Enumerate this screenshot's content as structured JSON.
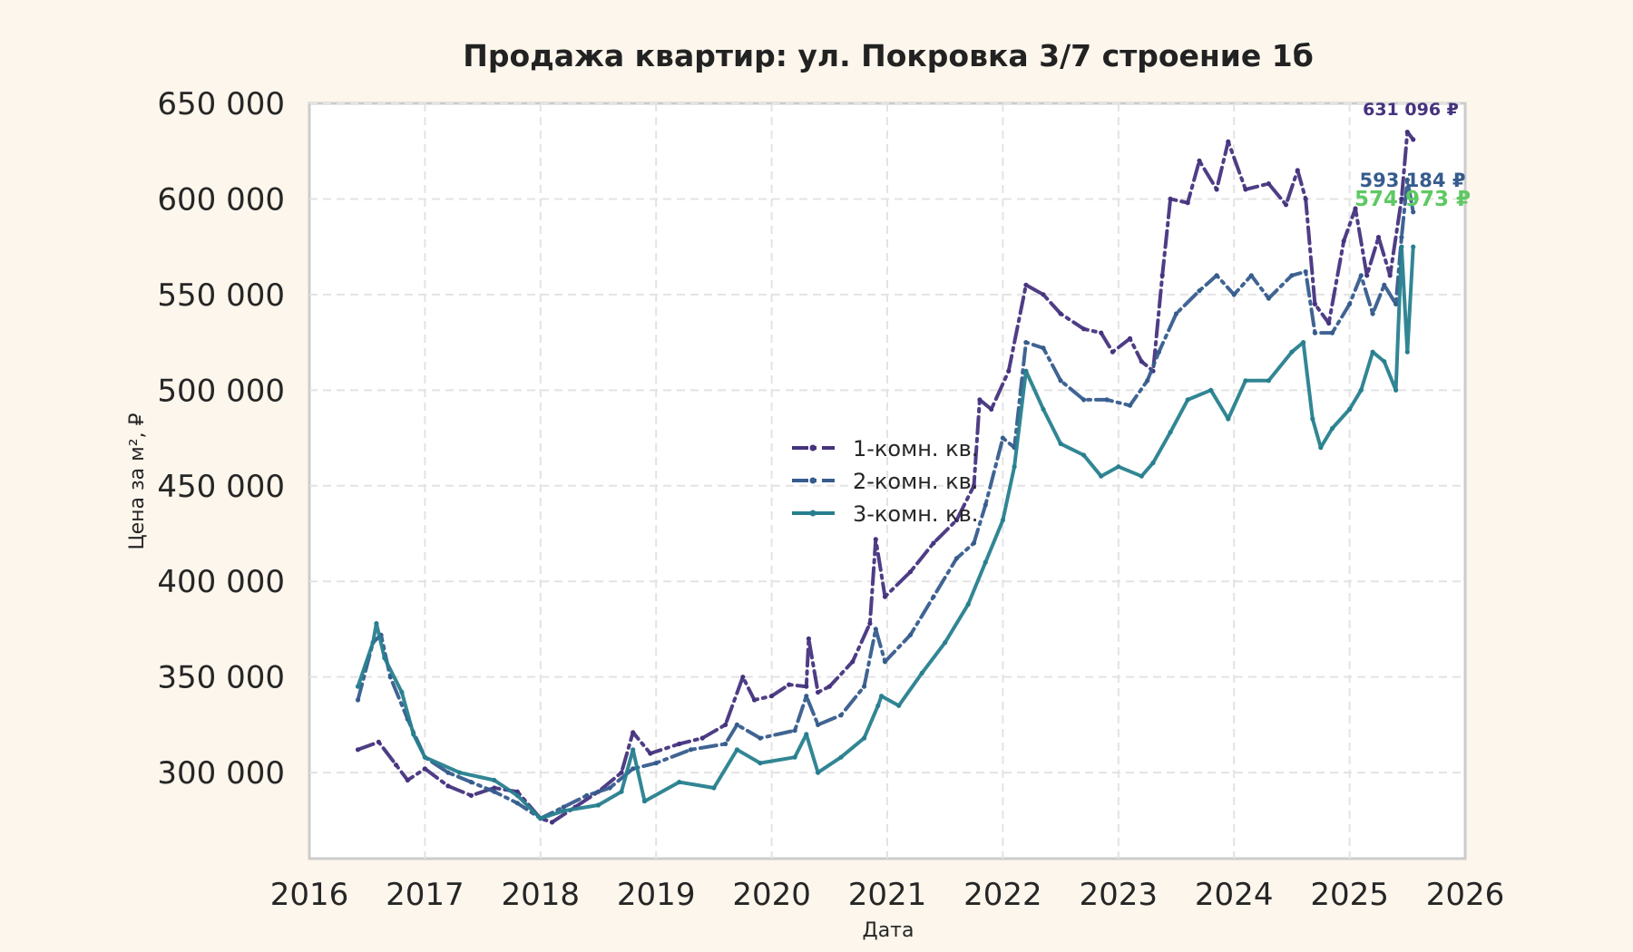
{
  "chart_data": {
    "type": "line",
    "title": "Продажа квартир: ул. Покровка 3/7 строение 1б",
    "xlabel": "Дата",
    "ylabel": "Цена за м², ₽",
    "xlim": [
      2016,
      2026
    ],
    "ylim": [
      255000,
      650000
    ],
    "xticks": [
      2016,
      2017,
      2018,
      2019,
      2020,
      2021,
      2022,
      2023,
      2024,
      2025,
      2026
    ],
    "xtick_labels": [
      "2016",
      "2017",
      "2018",
      "2019",
      "2020",
      "2021",
      "2022",
      "2023",
      "2024",
      "2025",
      "2026"
    ],
    "yticks": [
      300000,
      350000,
      400000,
      450000,
      500000,
      550000,
      600000,
      650000
    ],
    "ytick_labels": [
      "300 000",
      "350 000",
      "400 000",
      "450 000",
      "500 000",
      "550 000",
      "600 000",
      "650 000"
    ],
    "grid": true,
    "legend_position": "center",
    "series": [
      {
        "name": "1-комн. кв.",
        "color": "#46337e",
        "line_style": "dashdot",
        "end_label": "631 096 ₽",
        "points": [
          [
            2016.42,
            312000
          ],
          [
            2016.6,
            316000
          ],
          [
            2016.75,
            304000
          ],
          [
            2016.85,
            296000
          ],
          [
            2017.0,
            302000
          ],
          [
            2017.2,
            293000
          ],
          [
            2017.4,
            288000
          ],
          [
            2017.6,
            292000
          ],
          [
            2017.8,
            290000
          ],
          [
            2018.0,
            276000
          ],
          [
            2018.1,
            274000
          ],
          [
            2018.3,
            282000
          ],
          [
            2018.5,
            290000
          ],
          [
            2018.7,
            300000
          ],
          [
            2018.8,
            321000
          ],
          [
            2018.95,
            310000
          ],
          [
            2019.2,
            315000
          ],
          [
            2019.4,
            318000
          ],
          [
            2019.6,
            325000
          ],
          [
            2019.75,
            350000
          ],
          [
            2019.85,
            338000
          ],
          [
            2020.0,
            340000
          ],
          [
            2020.15,
            346000
          ],
          [
            2020.3,
            345000
          ],
          [
            2020.32,
            370000
          ],
          [
            2020.4,
            342000
          ],
          [
            2020.5,
            345000
          ],
          [
            2020.7,
            358000
          ],
          [
            2020.85,
            378000
          ],
          [
            2020.9,
            422000
          ],
          [
            2020.98,
            392000
          ],
          [
            2021.2,
            405000
          ],
          [
            2021.4,
            420000
          ],
          [
            2021.6,
            432000
          ],
          [
            2021.75,
            450000
          ],
          [
            2021.8,
            495000
          ],
          [
            2021.9,
            490000
          ],
          [
            2022.05,
            510000
          ],
          [
            2022.2,
            555000
          ],
          [
            2022.35,
            550000
          ],
          [
            2022.5,
            540000
          ],
          [
            2022.7,
            532000
          ],
          [
            2022.85,
            530000
          ],
          [
            2022.95,
            520000
          ],
          [
            2023.1,
            527000
          ],
          [
            2023.2,
            515000
          ],
          [
            2023.3,
            510000
          ],
          [
            2023.38,
            560000
          ],
          [
            2023.45,
            600000
          ],
          [
            2023.6,
            598000
          ],
          [
            2023.7,
            620000
          ],
          [
            2023.85,
            605000
          ],
          [
            2023.95,
            630000
          ],
          [
            2024.1,
            605000
          ],
          [
            2024.3,
            608000
          ],
          [
            2024.45,
            597000
          ],
          [
            2024.55,
            615000
          ],
          [
            2024.62,
            600000
          ],
          [
            2024.7,
            545000
          ],
          [
            2024.82,
            535000
          ],
          [
            2024.95,
            578000
          ],
          [
            2025.05,
            595000
          ],
          [
            2025.15,
            560000
          ],
          [
            2025.25,
            580000
          ],
          [
            2025.35,
            560000
          ],
          [
            2025.45,
            600000
          ],
          [
            2025.5,
            635000
          ],
          [
            2025.55,
            631096
          ]
        ]
      },
      {
        "name": "2-комн. кв.",
        "color": "#365c8d",
        "line_style": "dashdot",
        "end_label": "593 184 ₽",
        "points": [
          [
            2016.42,
            338000
          ],
          [
            2016.55,
            368000
          ],
          [
            2016.62,
            372000
          ],
          [
            2016.7,
            350000
          ],
          [
            2016.85,
            328000
          ],
          [
            2017.0,
            308000
          ],
          [
            2017.2,
            300000
          ],
          [
            2017.4,
            295000
          ],
          [
            2017.6,
            290000
          ],
          [
            2017.8,
            284000
          ],
          [
            2018.0,
            276000
          ],
          [
            2018.2,
            282000
          ],
          [
            2018.4,
            288000
          ],
          [
            2018.6,
            292000
          ],
          [
            2018.8,
            302000
          ],
          [
            2019.0,
            305000
          ],
          [
            2019.3,
            312000
          ],
          [
            2019.6,
            315000
          ],
          [
            2019.7,
            325000
          ],
          [
            2019.9,
            318000
          ],
          [
            2020.2,
            322000
          ],
          [
            2020.3,
            340000
          ],
          [
            2020.4,
            325000
          ],
          [
            2020.6,
            330000
          ],
          [
            2020.8,
            345000
          ],
          [
            2020.9,
            375000
          ],
          [
            2020.98,
            358000
          ],
          [
            2021.2,
            372000
          ],
          [
            2021.4,
            392000
          ],
          [
            2021.6,
            412000
          ],
          [
            2021.75,
            420000
          ],
          [
            2021.85,
            440000
          ],
          [
            2022.0,
            475000
          ],
          [
            2022.1,
            470000
          ],
          [
            2022.2,
            525000
          ],
          [
            2022.35,
            522000
          ],
          [
            2022.5,
            505000
          ],
          [
            2022.7,
            495000
          ],
          [
            2022.9,
            495000
          ],
          [
            2023.1,
            492000
          ],
          [
            2023.25,
            505000
          ],
          [
            2023.35,
            520000
          ],
          [
            2023.5,
            540000
          ],
          [
            2023.7,
            552000
          ],
          [
            2023.85,
            560000
          ],
          [
            2024.0,
            550000
          ],
          [
            2024.15,
            560000
          ],
          [
            2024.3,
            548000
          ],
          [
            2024.5,
            560000
          ],
          [
            2024.62,
            562000
          ],
          [
            2024.7,
            530000
          ],
          [
            2024.85,
            530000
          ],
          [
            2025.0,
            545000
          ],
          [
            2025.1,
            560000
          ],
          [
            2025.2,
            540000
          ],
          [
            2025.3,
            555000
          ],
          [
            2025.4,
            545000
          ],
          [
            2025.45,
            580000
          ],
          [
            2025.5,
            610000
          ],
          [
            2025.55,
            593184
          ]
        ]
      },
      {
        "name": "3-комн. кв.",
        "color": "#277f8e",
        "line_style": "solid",
        "end_label": "574 973 ₽",
        "end_label_color": "#5ec962",
        "points": [
          [
            2016.42,
            345000
          ],
          [
            2016.55,
            368000
          ],
          [
            2016.58,
            378000
          ],
          [
            2016.65,
            360000
          ],
          [
            2016.8,
            342000
          ],
          [
            2016.9,
            320000
          ],
          [
            2017.0,
            308000
          ],
          [
            2017.3,
            300000
          ],
          [
            2017.6,
            296000
          ],
          [
            2017.8,
            288000
          ],
          [
            2018.0,
            276000
          ],
          [
            2018.2,
            280000
          ],
          [
            2018.5,
            283000
          ],
          [
            2018.7,
            290000
          ],
          [
            2018.8,
            312000
          ],
          [
            2018.9,
            285000
          ],
          [
            2019.2,
            295000
          ],
          [
            2019.5,
            292000
          ],
          [
            2019.7,
            312000
          ],
          [
            2019.9,
            305000
          ],
          [
            2020.2,
            308000
          ],
          [
            2020.3,
            320000
          ],
          [
            2020.4,
            300000
          ],
          [
            2020.6,
            308000
          ],
          [
            2020.8,
            318000
          ],
          [
            2020.92,
            335000
          ],
          [
            2020.95,
            340000
          ],
          [
            2021.1,
            335000
          ],
          [
            2021.3,
            352000
          ],
          [
            2021.5,
            368000
          ],
          [
            2021.7,
            388000
          ],
          [
            2021.85,
            410000
          ],
          [
            2022.0,
            432000
          ],
          [
            2022.1,
            460000
          ],
          [
            2022.2,
            510000
          ],
          [
            2022.35,
            490000
          ],
          [
            2022.5,
            472000
          ],
          [
            2022.7,
            466000
          ],
          [
            2022.85,
            455000
          ],
          [
            2023.0,
            460000
          ],
          [
            2023.2,
            455000
          ],
          [
            2023.3,
            462000
          ],
          [
            2023.45,
            478000
          ],
          [
            2023.6,
            495000
          ],
          [
            2023.8,
            500000
          ],
          [
            2023.95,
            485000
          ],
          [
            2024.1,
            505000
          ],
          [
            2024.3,
            505000
          ],
          [
            2024.5,
            520000
          ],
          [
            2024.6,
            525000
          ],
          [
            2024.68,
            485000
          ],
          [
            2024.75,
            470000
          ],
          [
            2024.85,
            480000
          ],
          [
            2025.0,
            490000
          ],
          [
            2025.1,
            500000
          ],
          [
            2025.2,
            520000
          ],
          [
            2025.3,
            515000
          ],
          [
            2025.4,
            500000
          ],
          [
            2025.45,
            575000
          ],
          [
            2025.5,
            520000
          ],
          [
            2025.55,
            574973
          ]
        ]
      }
    ]
  }
}
